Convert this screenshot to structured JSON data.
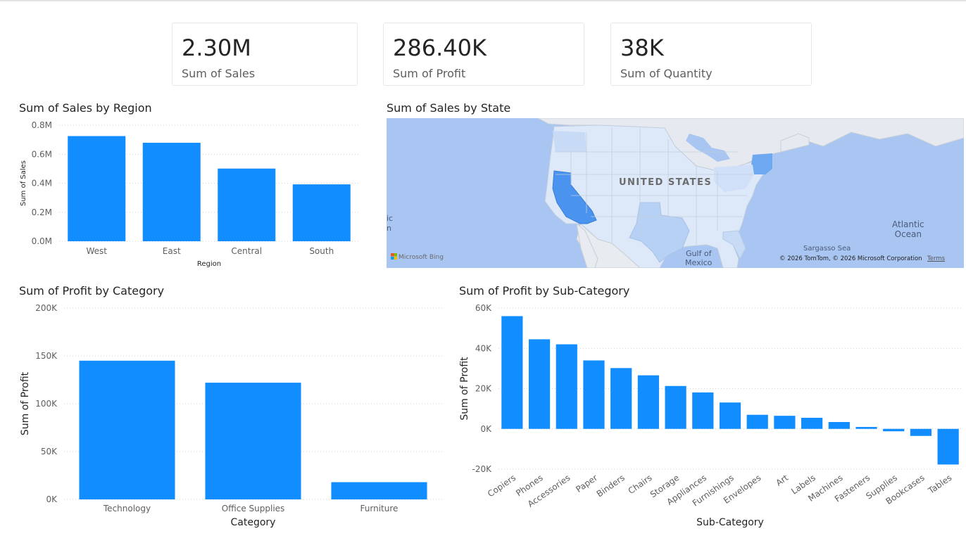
{
  "kpis": [
    {
      "value": "2.30M",
      "label": "Sum of Sales"
    },
    {
      "value": "286.40K",
      "label": "Sum of Profit"
    },
    {
      "value": "38K",
      "label": "Sum of Quantity"
    }
  ],
  "map": {
    "title": "Sum of Sales by State",
    "country_label": "UNITED STATES",
    "gulf_line1": "Gulf of",
    "gulf_line2": "Mexico",
    "ocean_line1": "Atlantic",
    "ocean_line2": "Ocean",
    "sargasso": "Sargasso Sea",
    "edge_line1": "ic",
    "edge_line2": "n",
    "attribution": "© 2026 TomTom, © 2026 Microsoft Corporation",
    "terms": "Terms",
    "bing": "Microsoft Bing"
  },
  "chart_data": [
    {
      "type": "bar",
      "title": "Sum of Sales by Region",
      "xlabel": "Region",
      "ylabel": "Sum of Sales",
      "categories": [
        "West",
        "East",
        "Central",
        "South"
      ],
      "values": [
        725000,
        679000,
        501000,
        392000
      ],
      "ylim": [
        0,
        800000
      ],
      "yticks": [
        0,
        200000,
        400000,
        600000,
        800000
      ],
      "ytick_labels": [
        "0.0M",
        "0.2M",
        "0.4M",
        "0.6M",
        "0.8M"
      ],
      "grid": true,
      "bar_color": "#118dff"
    },
    {
      "type": "bar",
      "title": "Sum of Profit by Category",
      "xlabel": "Category",
      "ylabel": "Sum of Profit",
      "categories": [
        "Technology",
        "Office Supplies",
        "Furniture"
      ],
      "values": [
        145000,
        122000,
        18000
      ],
      "ylim": [
        0,
        200000
      ],
      "yticks": [
        0,
        50000,
        100000,
        150000,
        200000
      ],
      "ytick_labels": [
        "0K",
        "50K",
        "100K",
        "150K",
        "200K"
      ],
      "grid": true,
      "bar_color": "#118dff"
    },
    {
      "type": "bar",
      "title": "Sum of Profit by Sub-Category",
      "xlabel": "Sub-Category",
      "ylabel": "Sum of Profit",
      "categories": [
        "Copiers",
        "Phones",
        "Accessories",
        "Paper",
        "Binders",
        "Chairs",
        "Storage",
        "Appliances",
        "Furnishings",
        "Envelopes",
        "Art",
        "Labels",
        "Machines",
        "Fasteners",
        "Supplies",
        "Bookcases",
        "Tables"
      ],
      "values": [
        56000,
        44500,
        42000,
        34000,
        30200,
        26600,
        21300,
        18100,
        13100,
        7000,
        6500,
        5500,
        3400,
        950,
        -1200,
        -3500,
        -17700
      ],
      "ylim": [
        -20000,
        60000
      ],
      "yticks": [
        -20000,
        0,
        20000,
        40000,
        60000
      ],
      "ytick_labels": [
        "-20K",
        "0K",
        "20K",
        "40K",
        "60K"
      ],
      "grid": true,
      "bar_color": "#118dff"
    }
  ]
}
